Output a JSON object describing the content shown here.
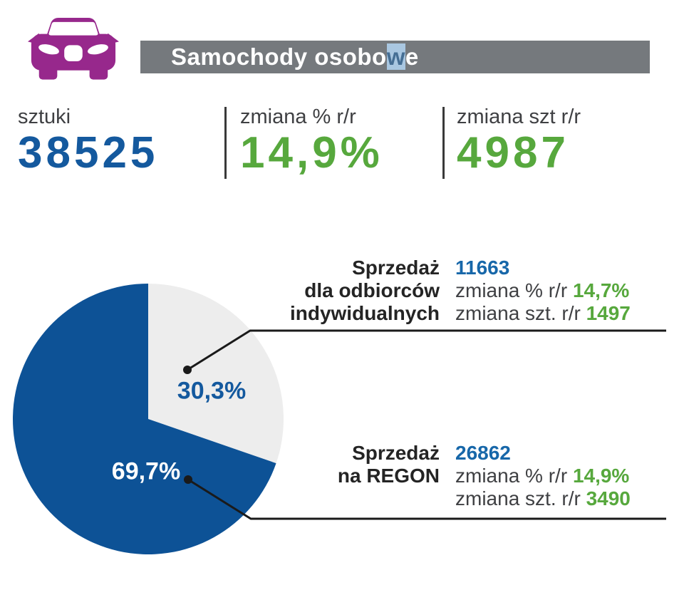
{
  "header": {
    "icon": "car-front-icon",
    "title_before": "Samochody osobo",
    "title_highlight": "w",
    "title_after": "e",
    "bar_color": "#75797D",
    "icon_color": "#97288C"
  },
  "stats": [
    {
      "label": "sztuki",
      "value": "38525",
      "color": "#14599E"
    },
    {
      "label": "zmiana % r/r",
      "value": "14,9%",
      "color": "#57A83D"
    },
    {
      "label": "zmiana szt r/r",
      "value": "4987",
      "color": "#57A83D"
    }
  ],
  "chart_data": {
    "type": "pie",
    "start_angle_deg": 0,
    "direction": "clockwise",
    "slices": [
      {
        "name": "Sprzedaż dla odbiorców indywidualnych",
        "pct": 30.3,
        "pct_label": "30,3%",
        "units": 11663,
        "color": "#EDEDED"
      },
      {
        "name": "Sprzedaż na REGON",
        "pct": 69.7,
        "pct_label": "69,7%",
        "units": 26862,
        "color": "#0D5296"
      }
    ],
    "total_units": 38525
  },
  "callouts": [
    {
      "name_lines": [
        "Sprzedaż",
        "dla odbiorców",
        "indywidualnych"
      ],
      "value": "11663",
      "metrics": [
        {
          "label": "zmiana % r/r",
          "value": "14,7%"
        },
        {
          "label": "zmiana szt. r/r",
          "value": "1497"
        }
      ]
    },
    {
      "name_lines": [
        "Sprzedaż",
        "na REGON",
        ""
      ],
      "value": "26862",
      "metrics": [
        {
          "label": "zmiana % r/r",
          "value": "14,9%"
        },
        {
          "label": "zmiana szt. r/r",
          "value": "3490"
        }
      ]
    }
  ],
  "colors": {
    "stat_number_blue": "#14599E",
    "callout_number_blue": "#1767A9",
    "green": "#57A83D",
    "pie_blue": "#0D5296",
    "pie_gray": "#EDEDED",
    "header_gray": "#75797D",
    "selection_bg": "#A9C7E1",
    "selection_text": "#456E94",
    "icon_magenta": "#97288C",
    "connector_black": "#1A1A1A"
  }
}
